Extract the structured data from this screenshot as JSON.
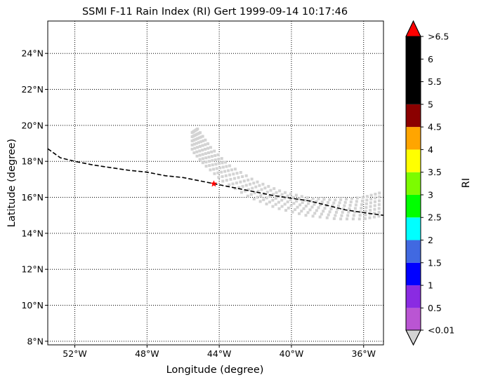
{
  "chart_data": {
    "type": "scatter",
    "title": "SSMI F-11 Rain Index (RI) Gert 1999-09-14 10:17:46",
    "xlabel": "Longitude (degree)",
    "ylabel": "Latitude (degree)",
    "xlim": [
      -53.5,
      -34.9
    ],
    "ylim": [
      7.8,
      25.8
    ],
    "grid": true,
    "grid_style": "dotted",
    "x_ticks": [
      {
        "value": -52,
        "label": "52°W"
      },
      {
        "value": -48,
        "label": "48°W"
      },
      {
        "value": -44,
        "label": "44°W"
      },
      {
        "value": -40,
        "label": "40°W"
      },
      {
        "value": -36,
        "label": "36°W"
      }
    ],
    "y_ticks": [
      {
        "value": 8,
        "label": "8°N"
      },
      {
        "value": 10,
        "label": "10°N"
      },
      {
        "value": 12,
        "label": "12°N"
      },
      {
        "value": 14,
        "label": "14°N"
      },
      {
        "value": 16,
        "label": "16°N"
      },
      {
        "value": 18,
        "label": "18°N"
      },
      {
        "value": 20,
        "label": "20°N"
      },
      {
        "value": 22,
        "label": "22°N"
      },
      {
        "value": 24,
        "label": "24°N"
      }
    ],
    "track": {
      "style": "dashed",
      "color": "#000000",
      "points": [
        [
          -53.5,
          18.7
        ],
        [
          -52.8,
          18.2
        ],
        [
          -52.0,
          18.0
        ],
        [
          -51.0,
          17.8
        ],
        [
          -50.0,
          17.65
        ],
        [
          -49.0,
          17.5
        ],
        [
          -48.0,
          17.4
        ],
        [
          -47.0,
          17.2
        ],
        [
          -46.0,
          17.1
        ],
        [
          -45.0,
          16.9
        ],
        [
          -44.0,
          16.7
        ],
        [
          -43.0,
          16.5
        ],
        [
          -42.0,
          16.3
        ],
        [
          -41.0,
          16.1
        ],
        [
          -40.0,
          15.95
        ],
        [
          -39.0,
          15.8
        ],
        [
          -38.0,
          15.55
        ],
        [
          -37.0,
          15.3
        ],
        [
          -36.0,
          15.15
        ],
        [
          -34.9,
          15.0
        ]
      ]
    },
    "storm_center": {
      "lon": -44.3,
      "lat": 16.75,
      "color": "#ff0000"
    },
    "swath": {
      "value_class": "<0.01",
      "color": "#d3d3d3",
      "inner_edge": [
        [
          -45.2,
          19.8
        ],
        [
          -44.5,
          18.8
        ],
        [
          -43.5,
          17.8
        ],
        [
          -42.0,
          16.9
        ],
        [
          -40.5,
          16.3
        ],
        [
          -39.0,
          15.95
        ],
        [
          -37.5,
          15.85
        ],
        [
          -36.0,
          16.0
        ],
        [
          -34.9,
          16.3
        ]
      ],
      "outer_edge": [
        [
          -45.5,
          19.6
        ],
        [
          -45.5,
          18.6
        ],
        [
          -44.8,
          17.8
        ],
        [
          -43.8,
          16.9
        ],
        [
          -42.3,
          16.0
        ],
        [
          -40.8,
          15.4
        ],
        [
          -39.2,
          15.0
        ],
        [
          -37.5,
          14.8
        ],
        [
          -36.0,
          14.8
        ],
        [
          -34.9,
          15.0
        ]
      ],
      "rows": 7,
      "columns": 40
    },
    "colorbar": {
      "label": "RI",
      "extend_min_color": "#d3d3d3",
      "extend_max_color": "#ff0000",
      "bins": [
        {
          "from": 0.01,
          "to": 0.5,
          "color": "#ba55d3"
        },
        {
          "from": 0.5,
          "to": 1,
          "color": "#8a2be2"
        },
        {
          "from": 1,
          "to": 1.5,
          "color": "#0000ff"
        },
        {
          "from": 1.5,
          "to": 2,
          "color": "#4169e1"
        },
        {
          "from": 2,
          "to": 2.5,
          "color": "#00ffff"
        },
        {
          "from": 2.5,
          "to": 3,
          "color": "#00ff00"
        },
        {
          "from": 3,
          "to": 3.5,
          "color": "#7cfc00"
        },
        {
          "from": 3.5,
          "to": 4,
          "color": "#ffff00"
        },
        {
          "from": 4,
          "to": 4.5,
          "color": "#ffa500"
        },
        {
          "from": 4.5,
          "to": 5,
          "color": "#8b0000"
        },
        {
          "from": 5,
          "to": 6.5,
          "color": "#000000"
        }
      ],
      "tick_labels": [
        {
          "value": 0.01,
          "label": "<0.01"
        },
        {
          "value": 0.5,
          "label": "0.5"
        },
        {
          "value": 1,
          "label": "1"
        },
        {
          "value": 1.5,
          "label": "1.5"
        },
        {
          "value": 2,
          "label": "2"
        },
        {
          "value": 2.5,
          "label": "2.5"
        },
        {
          "value": 3,
          "label": "3"
        },
        {
          "value": 3.5,
          "label": "3.5"
        },
        {
          "value": 4,
          "label": "4"
        },
        {
          "value": 4.5,
          "label": "4.5"
        },
        {
          "value": 5,
          "label": "5"
        },
        {
          "value": 5.5,
          "label": "5.5"
        },
        {
          "value": 6,
          "label": "6"
        },
        {
          "value": 6.5,
          "label": ">6.5"
        }
      ]
    }
  }
}
